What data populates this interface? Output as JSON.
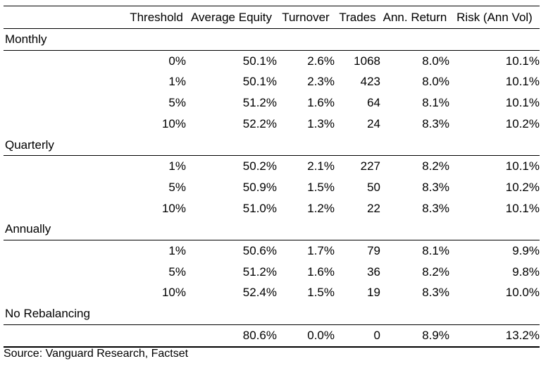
{
  "table": {
    "headers": {
      "threshold": "Threshold",
      "equity": "Average Equity",
      "turnover": "Turnover",
      "trades": "Trades",
      "ann_return": "Ann. Return",
      "risk": "Risk (Ann Vol)"
    },
    "sections": [
      {
        "label": "Monthly",
        "rows": [
          {
            "threshold": "0%",
            "equity": "50.1%",
            "turnover": "2.6%",
            "trades": "1068",
            "ann_return": "8.0%",
            "risk": "10.1%"
          },
          {
            "threshold": "1%",
            "equity": "50.1%",
            "turnover": "2.3%",
            "trades": "423",
            "ann_return": "8.0%",
            "risk": "10.1%"
          },
          {
            "threshold": "5%",
            "equity": "51.2%",
            "turnover": "1.6%",
            "trades": "64",
            "ann_return": "8.1%",
            "risk": "10.1%"
          },
          {
            "threshold": "10%",
            "equity": "52.2%",
            "turnover": "1.3%",
            "trades": "24",
            "ann_return": "8.3%",
            "risk": "10.2%"
          }
        ]
      },
      {
        "label": "Quarterly",
        "rows": [
          {
            "threshold": "1%",
            "equity": "50.2%",
            "turnover": "2.1%",
            "trades": "227",
            "ann_return": "8.2%",
            "risk": "10.1%"
          },
          {
            "threshold": "5%",
            "equity": "50.9%",
            "turnover": "1.5%",
            "trades": "50",
            "ann_return": "8.3%",
            "risk": "10.2%"
          },
          {
            "threshold": "10%",
            "equity": "51.0%",
            "turnover": "1.2%",
            "trades": "22",
            "ann_return": "8.3%",
            "risk": "10.1%"
          }
        ]
      },
      {
        "label": "Annually",
        "rows": [
          {
            "threshold": "1%",
            "equity": "50.6%",
            "turnover": "1.7%",
            "trades": "79",
            "ann_return": "8.1%",
            "risk": "9.9%"
          },
          {
            "threshold": "5%",
            "equity": "51.2%",
            "turnover": "1.6%",
            "trades": "36",
            "ann_return": "8.2%",
            "risk": "9.8%"
          },
          {
            "threshold": "10%",
            "equity": "52.4%",
            "turnover": "1.5%",
            "trades": "19",
            "ann_return": "8.3%",
            "risk": "10.0%"
          }
        ]
      },
      {
        "label": "No Rebalancing",
        "rows": [
          {
            "threshold": "",
            "equity": "80.6%",
            "turnover": "0.0%",
            "trades": "0",
            "ann_return": "8.9%",
            "risk": "13.2%"
          }
        ]
      }
    ]
  },
  "source": "Source: Vanguard Research, Factset"
}
